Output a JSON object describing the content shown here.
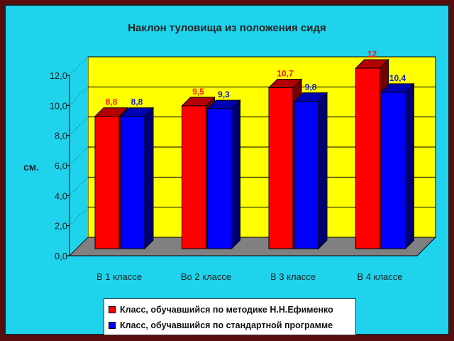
{
  "chart_data": {
    "type": "bar",
    "title": "Наклон туловища из положения сидя",
    "ylabel": "см.",
    "xlabel": "",
    "ylim": [
      0,
      12
    ],
    "yticks": [
      "0,0",
      "2,0",
      "4,0",
      "6,0",
      "8,0",
      "10,0",
      "12,0"
    ],
    "categories": [
      "В 1 классе",
      "Во 2 классе",
      "В 3 классе",
      "В 4 классе"
    ],
    "series": [
      {
        "name": "Класс, обучавшийся по методике Н.Н.Ефименко",
        "values": [
          8.8,
          9.5,
          10.7,
          12
        ],
        "labels": [
          "8,8",
          "9,5",
          "10,7",
          "12"
        ],
        "color": "#ff0000",
        "label_color": "#ff1a1a"
      },
      {
        "name": "Класс, обучавшийся по стандартной программе",
        "values": [
          8.8,
          9.3,
          9.8,
          10.4
        ],
        "labels": [
          "8,8",
          "9,3",
          "9,8",
          "10,4"
        ],
        "color": "#0000ff",
        "label_color": "#1a1acc"
      }
    ],
    "grid": true,
    "legend_position": "bottom",
    "three_d": true,
    "wall_color": "#ffff00",
    "floor_color": "#808080"
  }
}
